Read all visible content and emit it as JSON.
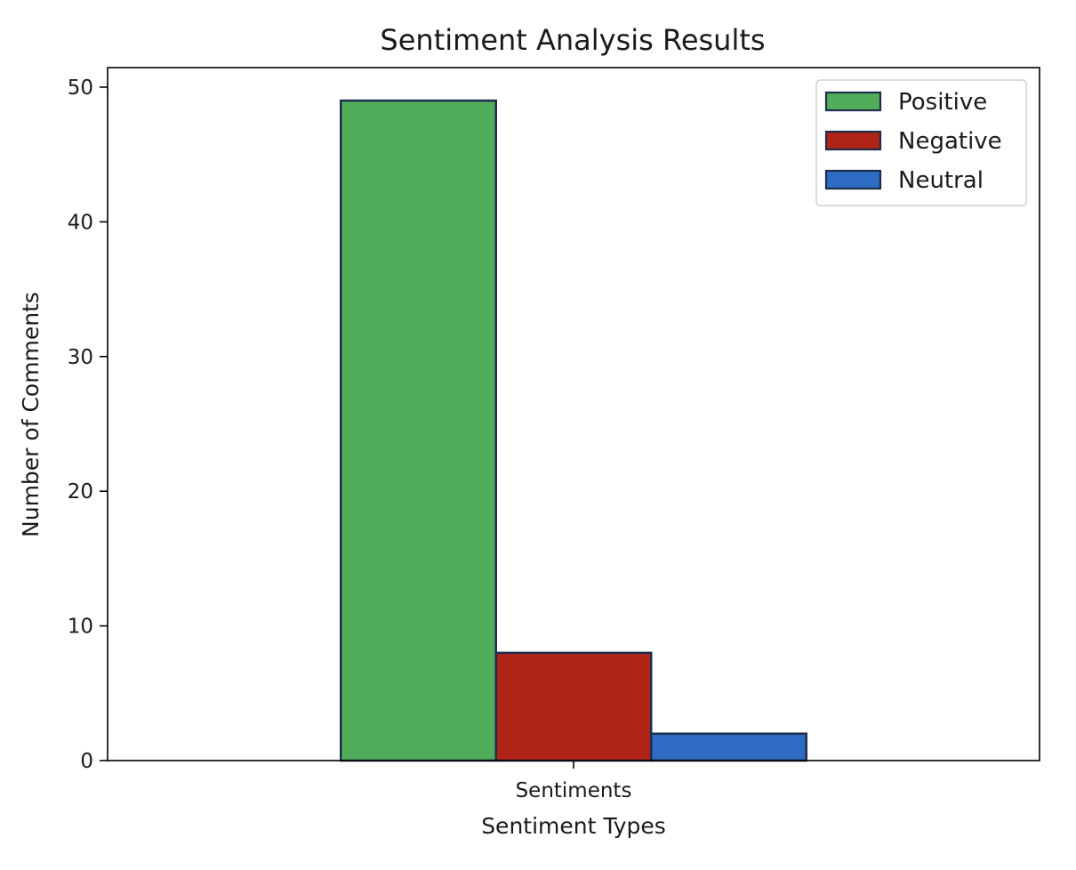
{
  "chart_data": {
    "type": "bar",
    "title": "Sentiment Analysis Results",
    "xlabel": "Sentiment Types",
    "ylabel": "Number of Comments",
    "categories": [
      "Sentiments"
    ],
    "series": [
      {
        "name": "Positive",
        "values": [
          49
        ],
        "color": "#52ad5b"
      },
      {
        "name": "Negative",
        "values": [
          8
        ],
        "color": "#b02418"
      },
      {
        "name": "Neutral",
        "values": [
          2
        ],
        "color": "#2e6bc2"
      }
    ],
    "ylim": [
      0,
      51.45
    ],
    "yticks": [
      0,
      10,
      20,
      30,
      40,
      50
    ],
    "bar_edge_color": "#1f2d4d",
    "grid": false,
    "legend": "top-right"
  }
}
